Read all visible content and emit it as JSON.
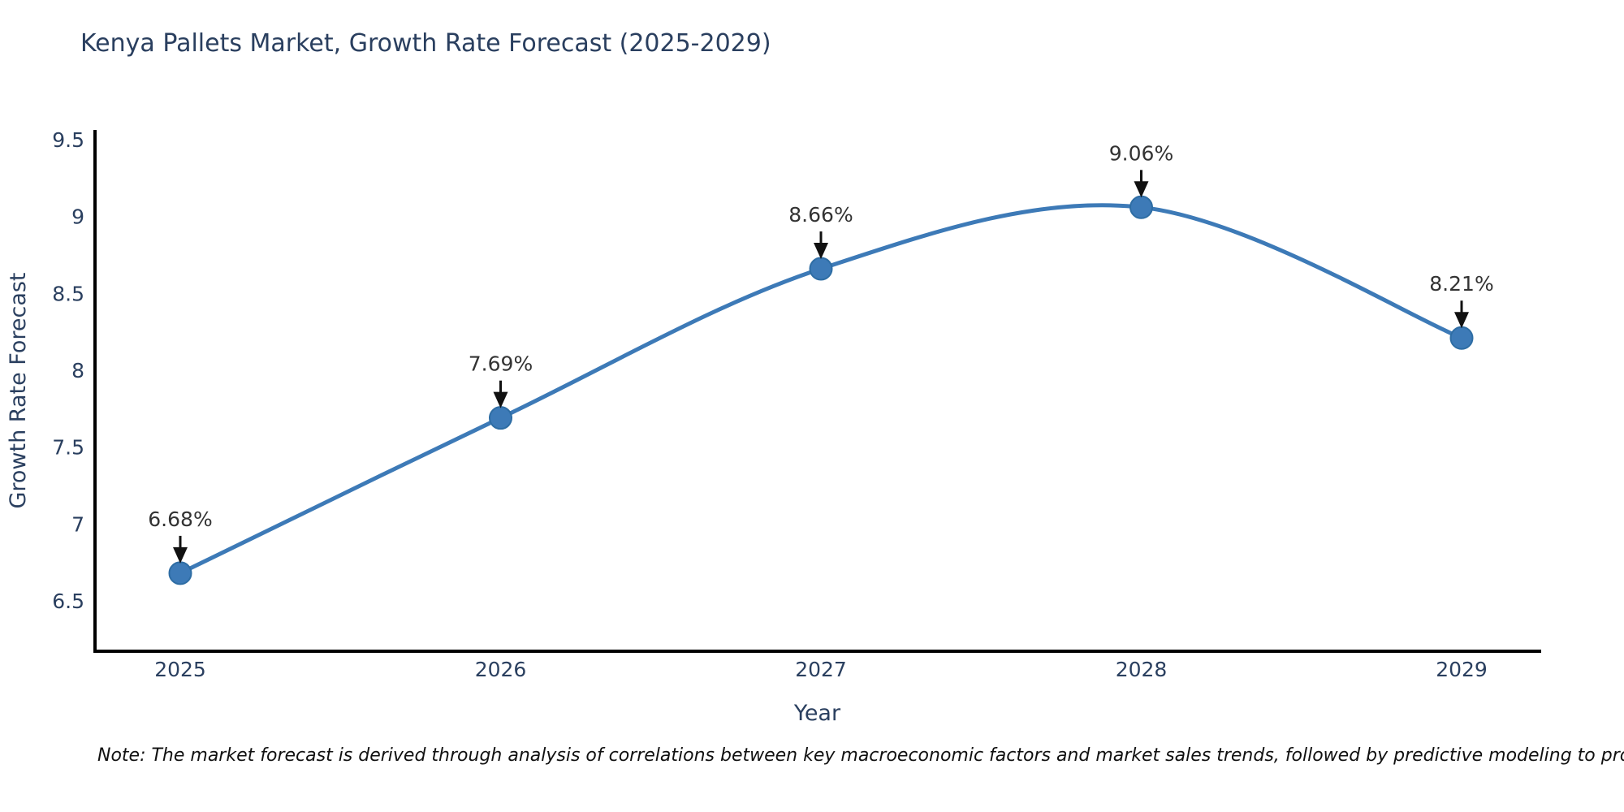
{
  "note": "Note: The market forecast is derived through analysis of correlations between key macroeconomic factors and market sales trends, followed by predictive modeling to project future sales",
  "chart_data": {
    "type": "line",
    "title": "Kenya Pallets Market, Growth Rate Forecast (2025-2029)",
    "xlabel": "Year",
    "ylabel": "Growth Rate Forecast",
    "categories": [
      "2025",
      "2026",
      "2027",
      "2028",
      "2029"
    ],
    "values": [
      6.68,
      7.69,
      8.66,
      9.06,
      8.21
    ],
    "point_labels": [
      "6.68%",
      "7.69%",
      "8.66%",
      "9.06%",
      "8.21%"
    ],
    "ytick_labels": [
      "9.5",
      "9",
      "8.5",
      "8",
      "7.5",
      "7",
      "6.5"
    ],
    "ytick_values": [
      9.5,
      9.0,
      8.5,
      8.0,
      7.5,
      7.0,
      6.5
    ],
    "ylim": [
      6.17,
      9.55
    ],
    "line_shape": "spline",
    "grid": false,
    "legend": "none",
    "colors": {
      "line": "#3d7ab7",
      "marker_fill": "#3d7ab7",
      "marker_edge": "#2e6da4",
      "axis": "#000000",
      "tick_text": "#2a3f5f",
      "annotation_text": "#333333",
      "arrow": "#111111"
    }
  }
}
